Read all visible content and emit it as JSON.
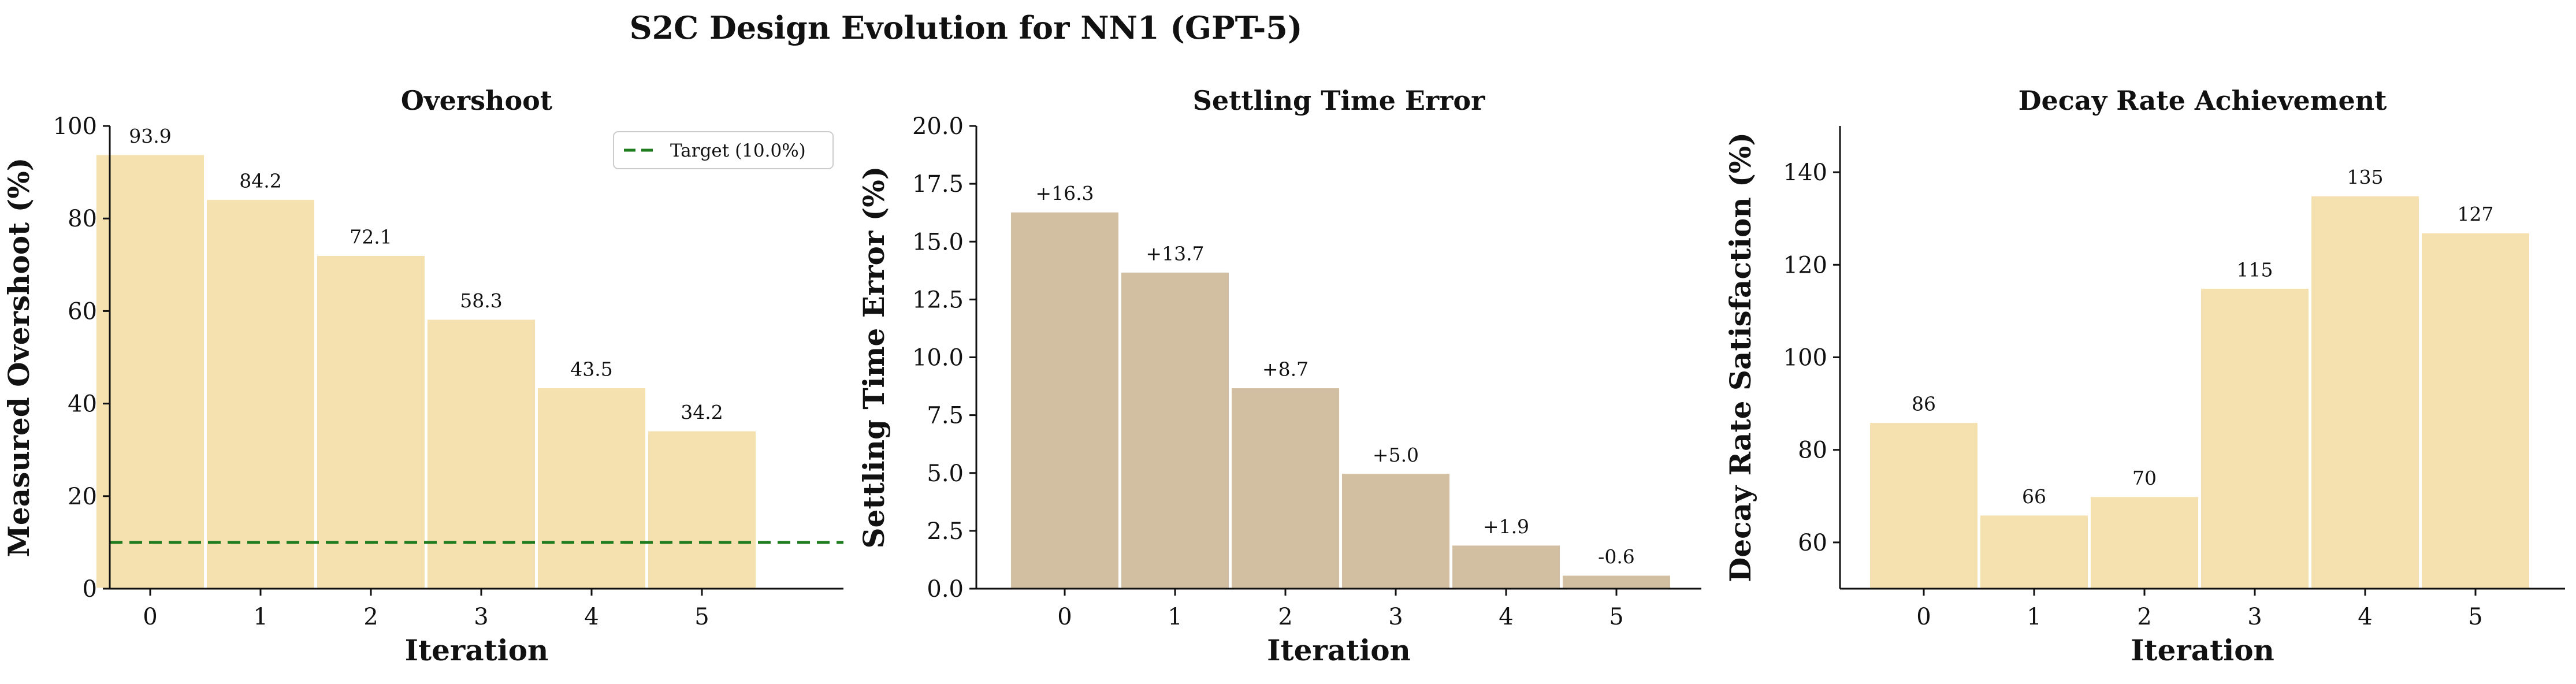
{
  "figure": {
    "suptitle": "S2C Design Evolution for NN1 (GPT-5)"
  },
  "chart_data": [
    {
      "type": "bar",
      "title": "Overshoot",
      "xlabel": "Iteration",
      "ylabel": "Measured Overshoot (%)",
      "categories": [
        "0",
        "1",
        "2",
        "3",
        "4",
        "5"
      ],
      "values": [
        93.9,
        84.2,
        72.1,
        58.3,
        43.5,
        34.2
      ],
      "data_labels": [
        "93.9",
        "84.2",
        "72.1",
        "58.3",
        "43.5",
        "34.2"
      ],
      "ylim": [
        0,
        100
      ],
      "yticks": [
        0,
        20,
        40,
        60,
        80,
        100
      ],
      "ytick_labels": [
        "0",
        "20",
        "40",
        "60",
        "80",
        "100"
      ],
      "bar_color": "#f5e0b0",
      "reference_line": {
        "value": 10.0,
        "label": "Target (10.0%)",
        "color": "#1e7b1e",
        "style": "dashed"
      },
      "legend": {
        "position": "top-right"
      },
      "grid": false
    },
    {
      "type": "bar",
      "title": "Settling Time Error",
      "xlabel": "Iteration",
      "ylabel": "Settling Time Error (%)",
      "categories": [
        "0",
        "1",
        "2",
        "3",
        "4",
        "5"
      ],
      "values": [
        16.3,
        13.7,
        8.7,
        5.0,
        1.9,
        0.6
      ],
      "data_labels": [
        "+16.3",
        "+13.7",
        "+8.7",
        "+5.0",
        "+1.9",
        "-0.6"
      ],
      "ylim": [
        0,
        20
      ],
      "yticks": [
        0,
        2.5,
        5,
        7.5,
        10,
        12.5,
        15,
        17.5,
        20
      ],
      "ytick_labels": [
        "0.0",
        "2.5",
        "5.0",
        "7.5",
        "10.0",
        "12.5",
        "15.0",
        "17.5",
        "20.0"
      ],
      "bar_color": "#d2bfa2",
      "grid": false
    },
    {
      "type": "bar",
      "title": "Decay Rate Achievement",
      "xlabel": "Iteration",
      "ylabel": "Decay Rate Satisfaction (%)",
      "categories": [
        "0",
        "1",
        "2",
        "3",
        "4",
        "5"
      ],
      "values": [
        86,
        66,
        70,
        115,
        135,
        127
      ],
      "data_labels": [
        "86",
        "66",
        "70",
        "115",
        "135",
        "127"
      ],
      "ylim": [
        50,
        150
      ],
      "yticks": [
        60,
        80,
        100,
        120,
        140
      ],
      "ytick_labels": [
        "60",
        "80",
        "100",
        "120",
        "140"
      ],
      "bar_color": "#f5e0b0",
      "grid": false
    }
  ]
}
